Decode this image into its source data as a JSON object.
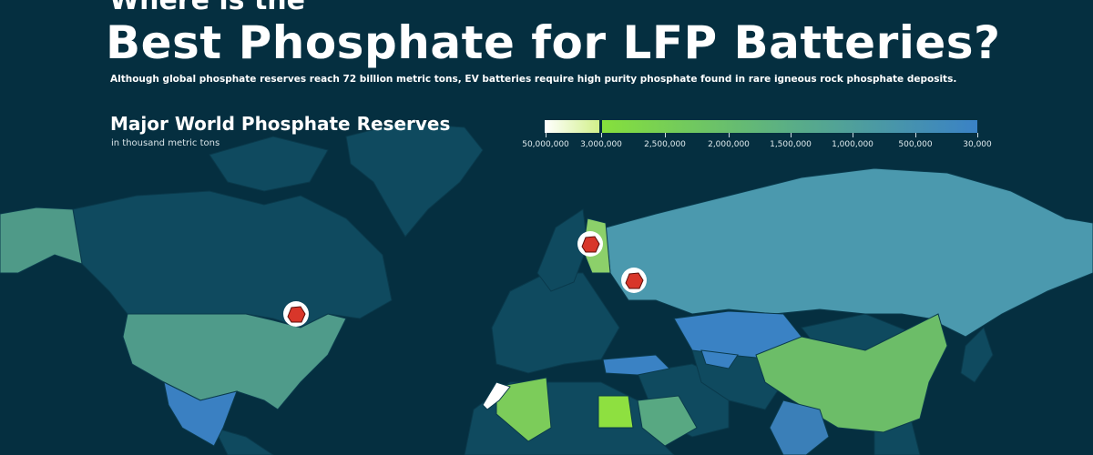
{
  "header": {
    "pre_title": "Where is the",
    "title": "Best Phosphate for LFP Batteries?",
    "subtitle": "Although global phosphate reserves  reach 72 billion metric tons, EV batteries require high purity phosphate found in rare igneous rock phosphate deposits."
  },
  "legend": {
    "title": "Major World Phosphate Reserves",
    "unit": "in thousand metric tons",
    "ticks": [
      "50,000,000",
      "3,000,000",
      "2,500,000",
      "2,000,000",
      "1,500,000",
      "1,000,000",
      "500,000",
      "30,000"
    ],
    "colors": {
      "max": "#ffffff",
      "high": "#86e03c",
      "mid": "#5aae86",
      "low": "#3a82c6"
    }
  },
  "map": {
    "colors": {
      "ocean": "#052f40",
      "land_no_data": "#0f4a5f"
    },
    "markers": [
      {
        "name": "igneous-deposit-canada",
        "icon": "rock-icon"
      },
      {
        "name": "igneous-deposit-finland",
        "icon": "rock-icon"
      },
      {
        "name": "igneous-deposit-russia",
        "icon": "rock-icon"
      }
    ]
  }
}
